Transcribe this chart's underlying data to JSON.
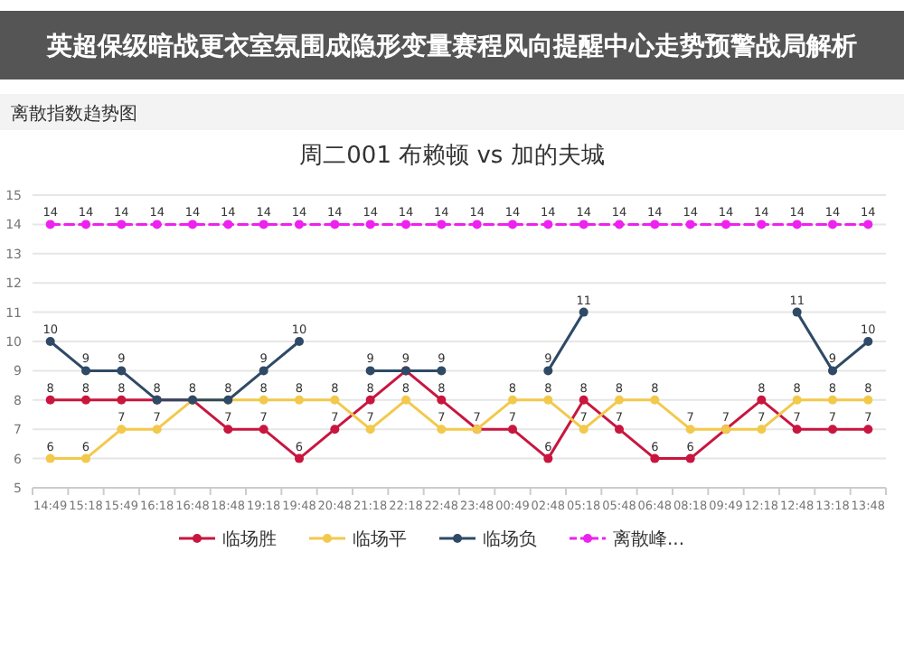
{
  "chart_data": {
    "type": "line",
    "title": "周二001 布赖顿 vs 加的夫城",
    "annotations": [
      "离散指数趋势图",
      "英超保级暗战更衣室氛围成隐形变量赛程风向提醒中心走势预警战局解析"
    ],
    "categories": [
      "14:49",
      "15:18",
      "15:49",
      "16:18",
      "16:48",
      "18:48",
      "19:18",
      "19:48",
      "20:48",
      "21:18",
      "22:18",
      "22:48",
      "23:48",
      "00:49",
      "02:48",
      "05:18",
      "05:48",
      "06:48",
      "08:18",
      "09:49",
      "12:18",
      "12:48",
      "13:18",
      "13:48"
    ],
    "series": [
      {
        "name": "临场胜",
        "color": "#c8163f",
        "values": [
          8,
          8,
          8,
          8,
          8,
          7,
          7,
          6,
          7,
          8,
          9,
          8,
          7,
          7,
          6,
          8,
          7,
          6,
          6,
          7,
          8,
          7,
          7,
          7
        ],
        "value_labels": [
          "8",
          "8",
          "8",
          "8",
          "8",
          "7",
          "7",
          "6",
          "7",
          "8",
          "9",
          "8",
          "7",
          "7",
          "6",
          "8",
          "7",
          "6",
          "6",
          "7",
          "8",
          "7",
          "7",
          "7"
        ]
      },
      {
        "name": "临场平",
        "color": "#f2c94c",
        "values": [
          6,
          6,
          7,
          7,
          8,
          8,
          8,
          8,
          8,
          7,
          8,
          7,
          7,
          8,
          8,
          7,
          8,
          8,
          7,
          7,
          7,
          8,
          8,
          8
        ],
        "value_labels": [
          "6",
          "6",
          "7",
          "7",
          null,
          "8",
          "8",
          "8",
          "8",
          "7",
          "8",
          "7",
          null,
          "8",
          "8",
          "7",
          "8",
          "8",
          "7",
          null,
          "7",
          "8",
          "8",
          "8"
        ]
      },
      {
        "name": "临场负",
        "color": "#2f4a66",
        "values": [
          10,
          9,
          9,
          8,
          8,
          8,
          9,
          10,
          null,
          9,
          9,
          9,
          null,
          null,
          9,
          11,
          null,
          null,
          null,
          null,
          null,
          11,
          9,
          10
        ],
        "value_labels": [
          "10",
          "9",
          "9",
          null,
          null,
          null,
          "9",
          "10",
          null,
          "9",
          null,
          "9",
          null,
          null,
          "9",
          "11",
          null,
          null,
          null,
          null,
          null,
          "11",
          "9",
          "10"
        ]
      },
      {
        "name": "离散峰...",
        "color": "#ee22ee",
        "line_style": "dashed",
        "values": [
          14,
          14,
          14,
          14,
          14,
          14,
          14,
          14,
          14,
          14,
          14,
          14,
          14,
          14,
          14,
          14,
          14,
          14,
          14,
          14,
          14,
          14,
          14,
          14
        ],
        "value_labels": [
          "14",
          "14",
          "14",
          "14",
          "14",
          "14",
          "14",
          "14",
          "14",
          "14",
          "14",
          "14",
          "14",
          "14",
          "14",
          "14",
          "14",
          "14",
          "14",
          "14",
          "14",
          "14",
          "14",
          "14"
        ]
      }
    ],
    "ylim": [
      5,
      15
    ],
    "yticks": [
      5,
      6,
      7,
      8,
      9,
      10,
      11,
      12,
      13,
      14,
      15
    ],
    "grid": "y",
    "marker": "circle",
    "legend": "bottom"
  }
}
